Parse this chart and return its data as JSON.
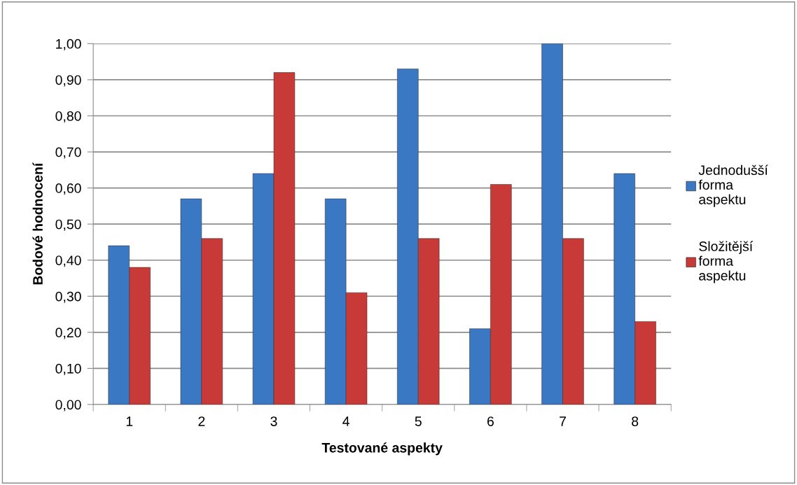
{
  "chart_data": {
    "type": "bar",
    "xlabel": "Testované aspekty",
    "ylabel": "Bodové hodnocení",
    "categories": [
      "1",
      "2",
      "3",
      "4",
      "5",
      "6",
      "7",
      "8"
    ],
    "series": [
      {
        "name": "Jednodušší forma aspektu",
        "color": "#3a78c4",
        "values": [
          0.44,
          0.57,
          0.64,
          0.57,
          0.93,
          0.21,
          1.0,
          0.64
        ]
      },
      {
        "name": "Složitější forma aspektu",
        "color": "#c83a38",
        "values": [
          0.38,
          0.46,
          0.92,
          0.31,
          0.46,
          0.61,
          0.46,
          0.23
        ]
      }
    ],
    "ylim": [
      0,
      1
    ],
    "yticks": [
      {
        "value": 0,
        "label": "0,00"
      },
      {
        "value": 0.1,
        "label": "0,10"
      },
      {
        "value": 0.2,
        "label": "0,20"
      },
      {
        "value": 0.3,
        "label": "0,30"
      },
      {
        "value": 0.4,
        "label": "0,40"
      },
      {
        "value": 0.5,
        "label": "0,50"
      },
      {
        "value": 0.6,
        "label": "0,60"
      },
      {
        "value": 0.7,
        "label": "0,70"
      },
      {
        "value": 0.8,
        "label": "0,80"
      },
      {
        "value": 0.9,
        "label": "0,90"
      },
      {
        "value": 1.0,
        "label": "1,00"
      }
    ],
    "grid": "y",
    "legend": "right"
  }
}
